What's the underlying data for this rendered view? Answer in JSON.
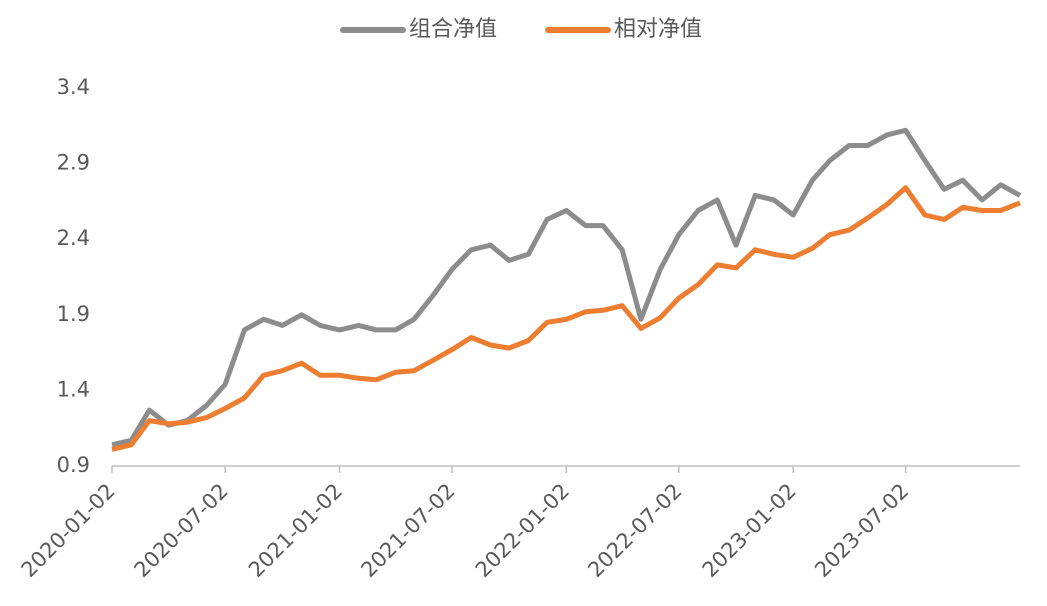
{
  "chart_data": {
    "type": "line",
    "x": [
      "2020-01-02",
      "2020-02-02",
      "2020-03-02",
      "2020-04-02",
      "2020-05-02",
      "2020-06-02",
      "2020-07-02",
      "2020-08-02",
      "2020-09-02",
      "2020-10-02",
      "2020-11-02",
      "2020-12-02",
      "2021-01-02",
      "2021-02-02",
      "2021-03-02",
      "2021-04-02",
      "2021-05-02",
      "2021-06-02",
      "2021-07-02",
      "2021-08-02",
      "2021-09-02",
      "2021-10-02",
      "2021-11-02",
      "2021-12-02",
      "2022-01-02",
      "2022-02-02",
      "2022-03-02",
      "2022-04-02",
      "2022-05-02",
      "2022-06-02",
      "2022-07-02",
      "2022-08-02",
      "2022-09-02",
      "2022-10-02",
      "2022-11-02",
      "2022-12-02",
      "2023-01-02",
      "2023-02-02",
      "2023-03-02",
      "2023-04-02",
      "2023-05-02",
      "2023-06-02",
      "2023-07-02",
      "2023-08-02",
      "2023-09-02",
      "2023-10-02",
      "2023-11-02",
      "2023-12-02",
      "2024-01-02"
    ],
    "series": [
      {
        "name": "组合净值",
        "color": "#8c8c8c",
        "values": [
          1.04,
          1.07,
          1.27,
          1.17,
          1.2,
          1.3,
          1.44,
          1.8,
          1.87,
          1.83,
          1.9,
          1.83,
          1.8,
          1.83,
          1.8,
          1.8,
          1.87,
          2.03,
          2.2,
          2.33,
          2.36,
          2.26,
          2.3,
          2.53,
          2.59,
          2.49,
          2.49,
          2.33,
          1.87,
          2.2,
          2.43,
          2.59,
          2.66,
          2.36,
          2.69,
          2.66,
          2.56,
          2.79,
          2.92,
          3.02,
          3.02,
          3.09,
          3.12,
          2.92,
          2.73,
          2.79,
          2.66,
          2.76,
          2.69
        ]
      },
      {
        "name": "相对净值",
        "color": "#ed7d31",
        "values": [
          1.01,
          1.04,
          1.2,
          1.18,
          1.19,
          1.22,
          1.28,
          1.35,
          1.5,
          1.53,
          1.58,
          1.5,
          1.5,
          1.48,
          1.47,
          1.52,
          1.53,
          1.6,
          1.67,
          1.75,
          1.7,
          1.68,
          1.73,
          1.85,
          1.87,
          1.92,
          1.93,
          1.96,
          1.81,
          1.88,
          2.01,
          2.1,
          2.23,
          2.21,
          2.33,
          2.3,
          2.28,
          2.34,
          2.43,
          2.46,
          2.54,
          2.63,
          2.74,
          2.56,
          2.53,
          2.61,
          2.59,
          2.59,
          2.64
        ]
      }
    ],
    "xlim": [
      "2020-01-02",
      "2024-01-02"
    ],
    "xticks": [
      "2020-01-02",
      "2020-07-02",
      "2021-01-02",
      "2021-07-02",
      "2022-01-02",
      "2022-07-02",
      "2023-01-02",
      "2023-07-02"
    ],
    "ylim": [
      0.9,
      3.4
    ],
    "yticks": [
      0.9,
      1.4,
      1.9,
      2.4,
      2.9,
      3.4
    ],
    "grid": false
  }
}
